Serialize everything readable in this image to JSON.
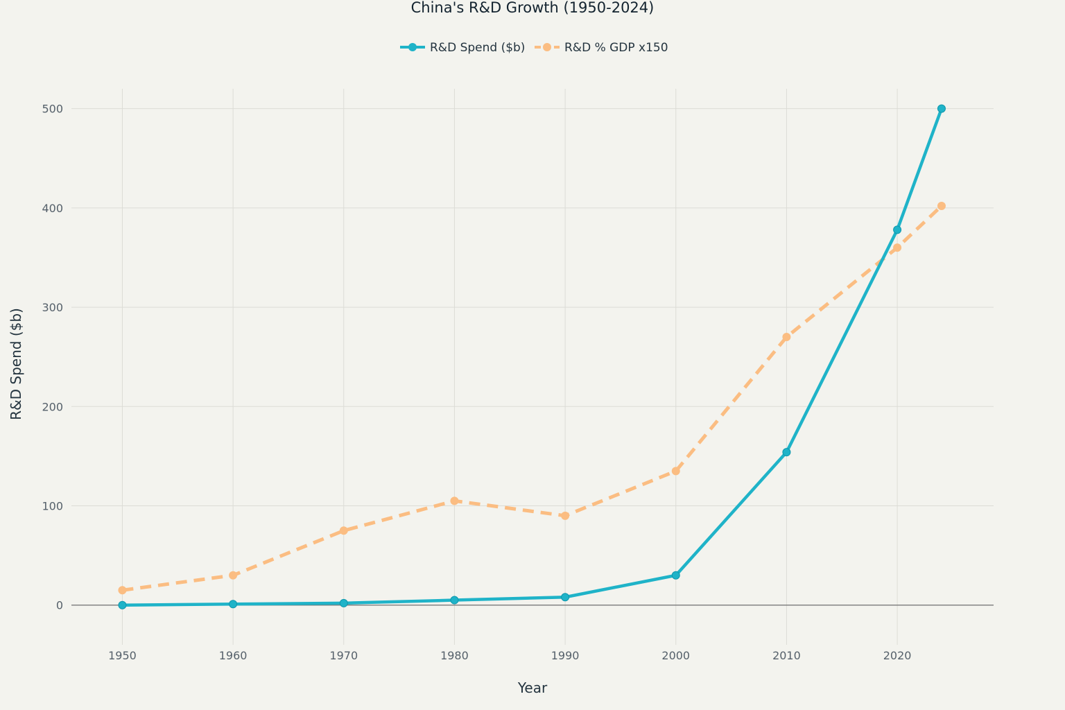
{
  "chart_data": {
    "type": "line",
    "title": "China's R&D Growth (1950-2024)",
    "xlabel": "Year",
    "ylabel": "R&D Spend ($b)",
    "x": [
      1950,
      1960,
      1970,
      1980,
      1990,
      2000,
      2010,
      2020,
      2024
    ],
    "xlim": [
      1945.4,
      2028.7
    ],
    "ylim": [
      -40,
      520
    ],
    "xticks": [
      1950,
      1960,
      1970,
      1980,
      1990,
      2000,
      2010,
      2020
    ],
    "yticks": [
      0,
      100,
      200,
      300,
      400,
      500
    ],
    "grid": true,
    "legend": {
      "position": "top-center",
      "orientation": "horizontal"
    },
    "series": [
      {
        "name": "R&D Spend ($b)",
        "values": [
          0,
          1,
          2,
          5,
          8,
          30,
          154,
          378,
          500
        ],
        "color": "#1fb3c8",
        "style": "solid"
      },
      {
        "name": "R&D % GDP x150",
        "values": [
          15,
          30,
          75,
          105,
          90,
          135,
          270,
          360,
          402
        ],
        "color": "#fbbd82",
        "style": "dashed"
      }
    ]
  },
  "colors": {
    "background": "#f3f3ee",
    "grid": "#dcdcd6",
    "zero_line": "#6e6e6e"
  }
}
